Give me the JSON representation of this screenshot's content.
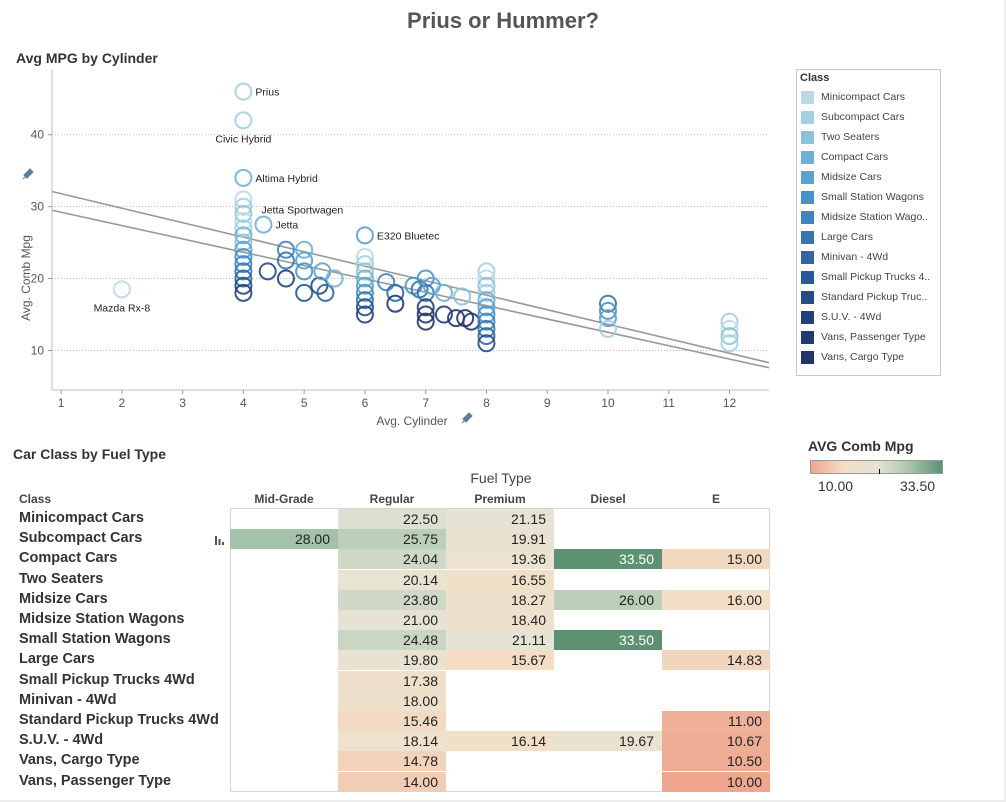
{
  "dashboard": {
    "title": "Prius or Hummer?"
  },
  "scatter": {
    "title": "Avg MPG by Cylinder"
  },
  "table": {
    "title": "Car Class by Fuel Type",
    "column_group_label": "Fuel Type",
    "row_header": "Class"
  },
  "color_legend": {
    "title": "AVG Comb Mpg",
    "min_label": "10.00",
    "max_label": "33.50",
    "colors": [
      "#efa68e",
      "#f3dfc7",
      "#e5e4d6",
      "#a9c5ad",
      "#5c9271"
    ]
  },
  "icons": {
    "axis_pin": "pin-icon",
    "bar_glyph": "bar-chart-icon"
  },
  "chart_data": [
    {
      "type": "scatter",
      "title": "Avg MPG by Cylinder",
      "xlabel": "Avg. Cylinder",
      "ylabel": "Avg. Comb Mpg",
      "xlim": [
        0.85,
        12.65
      ],
      "ylim": [
        4.5,
        49
      ],
      "x_ticks": [
        1,
        2,
        3,
        4,
        5,
        6,
        7,
        8,
        9,
        10,
        11,
        12
      ],
      "y_ticks": [
        10,
        20,
        30,
        40
      ],
      "grid": "horizontal dotted",
      "legend": {
        "title": "Class",
        "placement": "right",
        "entries": [
          {
            "label": "Minicompact Cars",
            "color": "#bdd8e2"
          },
          {
            "label": "Subcompact Cars",
            "color": "#a4cfe1"
          },
          {
            "label": "Two Seaters",
            "color": "#8bc3dc"
          },
          {
            "label": "Compact Cars",
            "color": "#6fb1d6"
          },
          {
            "label": "Midsize Cars",
            "color": "#5aa2d0"
          },
          {
            "label": "Small Station Wagons",
            "color": "#4a92c6"
          },
          {
            "label": "Midsize Station Wago..",
            "color": "#3f84bc"
          },
          {
            "label": "Large Cars",
            "color": "#3575b1"
          },
          {
            "label": "Minivan - 4Wd",
            "color": "#2d67a5"
          },
          {
            "label": "Small Pickup Trucks 4..",
            "color": "#295996"
          },
          {
            "label": "Standard Pickup Truc..",
            "color": "#264c87"
          },
          {
            "label": "S.U.V. - 4Wd",
            "color": "#23407a"
          },
          {
            "label": "Vans, Passenger Type",
            "color": "#23396f"
          },
          {
            "label": "Vans, Cargo Type",
            "color": "#243466"
          }
        ]
      },
      "annotations": [
        {
          "text": "Prius",
          "x": 4,
          "y": 46,
          "pos": "right"
        },
        {
          "text": "Civic Hybrid",
          "x": 4,
          "y": 42,
          "pos": "below"
        },
        {
          "text": "Altima Hybrid",
          "x": 4,
          "y": 34,
          "pos": "right"
        },
        {
          "text": "Jetta Sportwagen",
          "x": 4.1,
          "y": 29.6,
          "pos": "right"
        },
        {
          "text": "Jetta",
          "x": 4.33,
          "y": 27.5,
          "pos": "right"
        },
        {
          "text": "E320 Bluetec",
          "x": 6,
          "y": 26,
          "pos": "right"
        },
        {
          "text": "Mazda Rx-8",
          "x": 2,
          "y": 18.5,
          "pos": "below"
        }
      ],
      "trend_lines": [
        {
          "x": [
            0.85,
            12.65
          ],
          "y": [
            32.1,
            8.3
          ]
        },
        {
          "x": [
            0.85,
            12.65
          ],
          "y": [
            29.5,
            7.6
          ]
        }
      ],
      "points": [
        {
          "x": 2,
          "y": 18.5,
          "c": 0
        },
        {
          "x": 4,
          "y": 46,
          "c": 1
        },
        {
          "x": 4,
          "y": 42,
          "c": 1
        },
        {
          "x": 4,
          "y": 34,
          "c": 3
        },
        {
          "x": 4.33,
          "y": 27.5,
          "c": 3
        },
        {
          "x": 6,
          "y": 26,
          "c": 4
        },
        {
          "x": 4,
          "y": 31,
          "c": 0
        },
        {
          "x": 4,
          "y": 30,
          "c": 1
        },
        {
          "x": 4,
          "y": 29,
          "c": 2
        },
        {
          "x": 4,
          "y": 28,
          "c": 0
        },
        {
          "x": 4,
          "y": 27,
          "c": 1
        },
        {
          "x": 4,
          "y": 26,
          "c": 3
        },
        {
          "x": 4,
          "y": 25,
          "c": 2
        },
        {
          "x": 4,
          "y": 24,
          "c": 4
        },
        {
          "x": 4,
          "y": 23,
          "c": 5
        },
        {
          "x": 4,
          "y": 22,
          "c": 6
        },
        {
          "x": 4,
          "y": 21,
          "c": 7
        },
        {
          "x": 4,
          "y": 20,
          "c": 8
        },
        {
          "x": 4,
          "y": 19,
          "c": 10
        },
        {
          "x": 4,
          "y": 18,
          "c": 11
        },
        {
          "x": 4.4,
          "y": 21,
          "c": 10
        },
        {
          "x": 4.7,
          "y": 24,
          "c": 6
        },
        {
          "x": 4.7,
          "y": 22.5,
          "c": 7
        },
        {
          "x": 4.7,
          "y": 20,
          "c": 11
        },
        {
          "x": 5,
          "y": 24,
          "c": 3
        },
        {
          "x": 5,
          "y": 22.5,
          "c": 4
        },
        {
          "x": 5,
          "y": 21,
          "c": 5
        },
        {
          "x": 5,
          "y": 18,
          "c": 9
        },
        {
          "x": 5.25,
          "y": 19,
          "c": 10
        },
        {
          "x": 5.3,
          "y": 21,
          "c": 4
        },
        {
          "x": 5.35,
          "y": 18,
          "c": 8
        },
        {
          "x": 5.5,
          "y": 20,
          "c": 3
        },
        {
          "x": 6,
          "y": 23,
          "c": 0
        },
        {
          "x": 6,
          "y": 22,
          "c": 1
        },
        {
          "x": 6,
          "y": 21,
          "c": 2
        },
        {
          "x": 6,
          "y": 20,
          "c": 3
        },
        {
          "x": 6,
          "y": 19,
          "c": 4
        },
        {
          "x": 6,
          "y": 18,
          "c": 5
        },
        {
          "x": 6,
          "y": 17,
          "c": 7
        },
        {
          "x": 6,
          "y": 16,
          "c": 10
        },
        {
          "x": 6,
          "y": 15,
          "c": 11
        },
        {
          "x": 6.35,
          "y": 19.5,
          "c": 6
        },
        {
          "x": 6.5,
          "y": 18,
          "c": 8
        },
        {
          "x": 6.5,
          "y": 16.5,
          "c": 12
        },
        {
          "x": 6.8,
          "y": 19,
          "c": 5
        },
        {
          "x": 6.9,
          "y": 18.5,
          "c": 7
        },
        {
          "x": 7,
          "y": 20,
          "c": 5
        },
        {
          "x": 7,
          "y": 18,
          "c": 7
        },
        {
          "x": 7,
          "y": 16,
          "c": 11
        },
        {
          "x": 7,
          "y": 15,
          "c": 12
        },
        {
          "x": 7,
          "y": 14,
          "c": 13
        },
        {
          "x": 7.1,
          "y": 19,
          "c": 4
        },
        {
          "x": 7.3,
          "y": 18,
          "c": 3
        },
        {
          "x": 7.3,
          "y": 15,
          "c": 11
        },
        {
          "x": 7.5,
          "y": 14.5,
          "c": 12
        },
        {
          "x": 7.6,
          "y": 17.5,
          "c": 2
        },
        {
          "x": 7.65,
          "y": 14.5,
          "c": 13
        },
        {
          "x": 7.75,
          "y": 14,
          "c": 12
        },
        {
          "x": 8,
          "y": 21,
          "c": 1
        },
        {
          "x": 8,
          "y": 20,
          "c": 0
        },
        {
          "x": 8,
          "y": 19,
          "c": 2
        },
        {
          "x": 8,
          "y": 18,
          "c": 1
        },
        {
          "x": 8,
          "y": 17,
          "c": 3
        },
        {
          "x": 8,
          "y": 16,
          "c": 4
        },
        {
          "x": 8,
          "y": 15,
          "c": 5
        },
        {
          "x": 8,
          "y": 14,
          "c": 6
        },
        {
          "x": 8,
          "y": 13,
          "c": 7
        },
        {
          "x": 8,
          "y": 12,
          "c": 8
        },
        {
          "x": 8,
          "y": 11,
          "c": 10
        },
        {
          "x": 10,
          "y": 16.5,
          "c": 7
        },
        {
          "x": 10,
          "y": 15.5,
          "c": 5
        },
        {
          "x": 10,
          "y": 14.5,
          "c": 4
        },
        {
          "x": 10,
          "y": 13,
          "c": 1
        },
        {
          "x": 12,
          "y": 14,
          "c": 1
        },
        {
          "x": 12,
          "y": 13,
          "c": 0
        },
        {
          "x": 12,
          "y": 12,
          "c": 2
        },
        {
          "x": 12,
          "y": 11,
          "c": 1
        }
      ]
    },
    {
      "type": "heatmap",
      "title": "Car Class by Fuel Type",
      "column_group": "Fuel Type",
      "row_header": "Class",
      "columns": [
        "Mid-Grade",
        "Regular",
        "Premium",
        "Diesel",
        "E"
      ],
      "color_range": [
        10.0,
        33.5
      ],
      "rows": [
        {
          "label": "Minicompact Cars",
          "values": [
            null,
            "22.50",
            "21.15",
            null,
            null
          ]
        },
        {
          "label": "Subcompact Cars",
          "values": [
            "28.00",
            "25.75",
            "19.91",
            null,
            null
          ]
        },
        {
          "label": "Compact Cars",
          "values": [
            null,
            "24.04",
            "19.36",
            "33.50",
            "15.00"
          ]
        },
        {
          "label": "Two Seaters",
          "values": [
            null,
            "20.14",
            "16.55",
            null,
            null
          ]
        },
        {
          "label": "Midsize Cars",
          "values": [
            null,
            "23.80",
            "18.27",
            "26.00",
            "16.00"
          ]
        },
        {
          "label": "Midsize Station Wagons",
          "values": [
            null,
            "21.00",
            "18.40",
            null,
            null
          ]
        },
        {
          "label": "Small Station Wagons",
          "values": [
            null,
            "24.48",
            "21.11",
            "33.50",
            null
          ]
        },
        {
          "label": "Large Cars",
          "values": [
            null,
            "19.80",
            "15.67",
            null,
            "14.83"
          ]
        },
        {
          "label": "Small Pickup Trucks 4Wd",
          "values": [
            null,
            "17.38",
            null,
            null,
            null
          ]
        },
        {
          "label": "Minivan - 4Wd",
          "values": [
            null,
            "18.00",
            null,
            null,
            null
          ]
        },
        {
          "label": "Standard Pickup Trucks 4Wd",
          "values": [
            null,
            "15.46",
            null,
            null,
            "11.00"
          ]
        },
        {
          "label": "S.U.V. - 4Wd",
          "values": [
            null,
            "18.14",
            "16.14",
            "19.67",
            "10.67"
          ]
        },
        {
          "label": "Vans, Cargo Type",
          "values": [
            null,
            "14.78",
            null,
            null,
            "10.50"
          ]
        },
        {
          "label": "Vans, Passenger Type",
          "values": [
            null,
            "14.00",
            null,
            null,
            "10.00"
          ]
        }
      ]
    }
  ]
}
